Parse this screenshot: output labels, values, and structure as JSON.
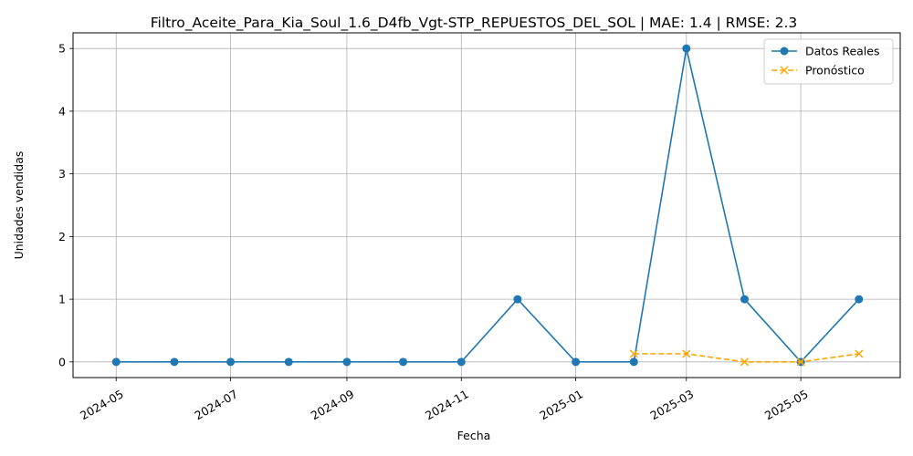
{
  "chart_data": {
    "type": "line",
    "title": "Filtro_Aceite_Para_Kia_Soul_1.6_D4fb_Vgt-STP_REPUESTOS_DEL_SOL | MAE: 1.4 | RMSE: 2.3",
    "xlabel": "Fecha",
    "ylabel": "Unidades vendidas",
    "x_ticks": [
      "2024-05",
      "2024-07",
      "2024-09",
      "2024-11",
      "2025-01",
      "2025-03",
      "2025-05"
    ],
    "y_ticks": [
      0,
      1,
      2,
      3,
      4,
      5
    ],
    "ylim": [
      -0.25,
      5.25
    ],
    "xlim": [
      "2024-04-08",
      "2025-06-23"
    ],
    "grid": true,
    "legend_position": "top-right",
    "series": [
      {
        "name": "Datos Reales",
        "color": "#1f77b4",
        "style": "solid",
        "marker": "circle",
        "points": [
          {
            "x": "2024-05-01",
            "y": 0
          },
          {
            "x": "2024-06-01",
            "y": 0
          },
          {
            "x": "2024-07-01",
            "y": 0
          },
          {
            "x": "2024-08-01",
            "y": 0
          },
          {
            "x": "2024-09-01",
            "y": 0
          },
          {
            "x": "2024-10-01",
            "y": 0
          },
          {
            "x": "2024-11-01",
            "y": 0
          },
          {
            "x": "2024-12-01",
            "y": 1
          },
          {
            "x": "2025-01-01",
            "y": 0
          },
          {
            "x": "2025-02-01",
            "y": 0
          },
          {
            "x": "2025-03-01",
            "y": 5
          },
          {
            "x": "2025-04-01",
            "y": 1
          },
          {
            "x": "2025-05-01",
            "y": 0
          },
          {
            "x": "2025-06-01",
            "y": 1
          }
        ]
      },
      {
        "name": "Pronóstico",
        "color": "#ffa500",
        "style": "dashed",
        "marker": "x",
        "points": [
          {
            "x": "2025-02-01",
            "y": 0.13
          },
          {
            "x": "2025-03-01",
            "y": 0.13
          },
          {
            "x": "2025-04-01",
            "y": 0
          },
          {
            "x": "2025-05-01",
            "y": 0
          },
          {
            "x": "2025-06-01",
            "y": 0.13
          }
        ]
      }
    ]
  }
}
